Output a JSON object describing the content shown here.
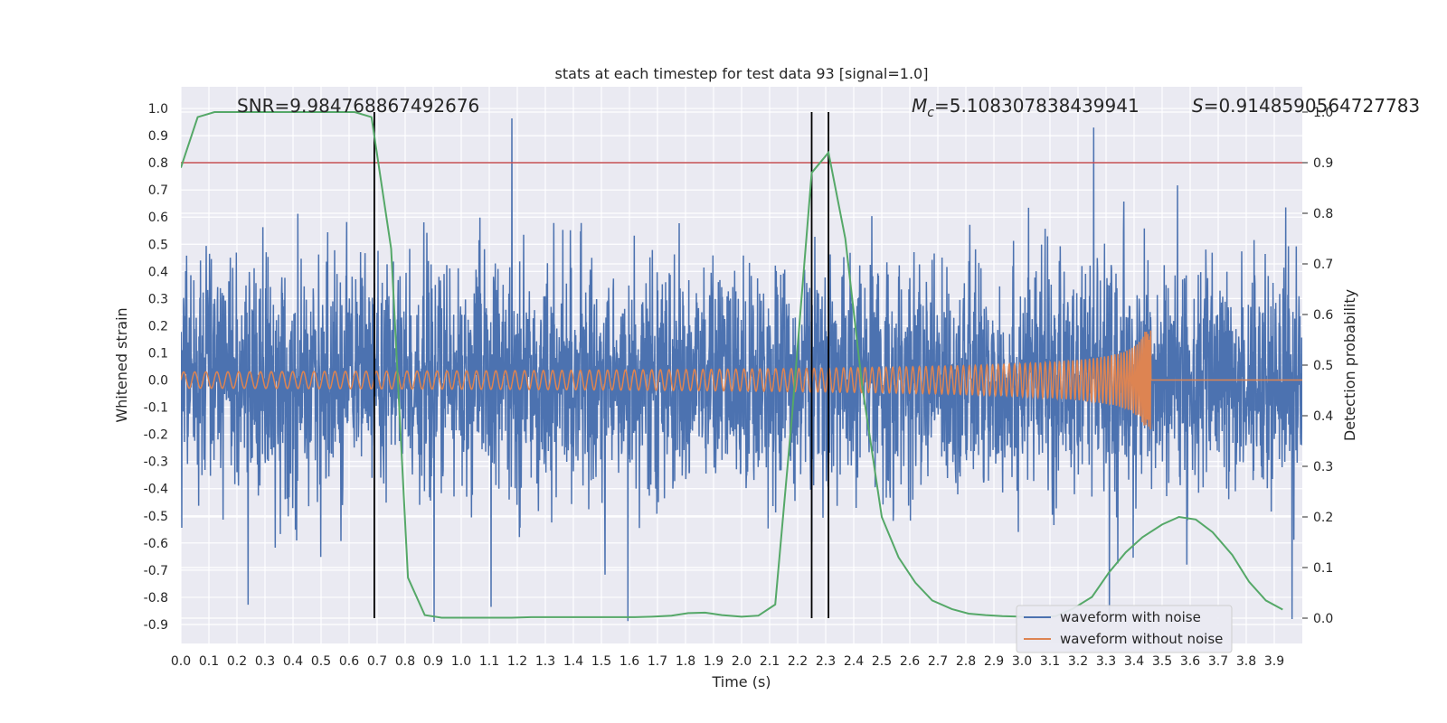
{
  "chart_data": {
    "type": "line",
    "title": "stats at each timestep for test data 93 [signal=1.0]",
    "xlabel": "Time (s)",
    "ylabel": "Whitened strain",
    "y2label": "Detection probability",
    "xlim": [
      0.0,
      4.0
    ],
    "ylim": [
      -0.97,
      1.08
    ],
    "y2lim": [
      -0.05,
      1.05
    ],
    "grid": true,
    "legend_position": "lower-right",
    "xticks": [
      "0.0",
      "0.1",
      "0.2",
      "0.3",
      "0.4",
      "0.5",
      "0.6",
      "0.7",
      "0.8",
      "0.9",
      "1.0",
      "1.1",
      "1.2",
      "1.3",
      "1.4",
      "1.5",
      "1.6",
      "1.7",
      "1.8",
      "1.9",
      "2.0",
      "2.1",
      "2.2",
      "2.3",
      "2.4",
      "2.5",
      "2.6",
      "2.7",
      "2.8",
      "2.9",
      "3.0",
      "3.1",
      "3.2",
      "3.3",
      "3.4",
      "3.5",
      "3.6",
      "3.7",
      "3.8",
      "3.9"
    ],
    "yticks": [
      "1.0",
      "0.9",
      "0.8",
      "0.7",
      "0.6",
      "0.5",
      "0.4",
      "0.3",
      "0.2",
      "0.1",
      "0.0",
      "-0.1",
      "-0.2",
      "-0.3",
      "-0.4",
      "-0.5",
      "-0.6",
      "-0.7",
      "-0.8",
      "-0.9"
    ],
    "y2ticks": [
      "1.0",
      "0.9",
      "0.8",
      "0.7",
      "0.6",
      "0.5",
      "0.4",
      "0.3",
      "0.2",
      "0.1",
      "0.0"
    ],
    "annotations": {
      "snr": "SNR=9.984768867492676",
      "mc": "=5.108307838439941",
      "mc_symbol": "M",
      "mc_sub": "c",
      "s": "=0.9148590564727783",
      "s_symbol": "S"
    },
    "series": [
      {
        "name": "waveform with noise",
        "color": "#4c72b0",
        "description_values": "noisy whitened strain, amplitude mostly within [-0.9, 1.0]"
      },
      {
        "name": "waveform without noise",
        "color": "#dd8452",
        "chirp_end_time": 3.46,
        "chirp_start_amplitude": 0.03,
        "chirp_peak_amplitude": 0.22
      },
      {
        "name": "detection probability",
        "axis": "y2",
        "color": "#55a868",
        "x": [
          0.0,
          0.06,
          0.12,
          0.19,
          0.25,
          0.31,
          0.37,
          0.43,
          0.5,
          0.56,
          0.62,
          0.68,
          0.75,
          0.81,
          0.87,
          0.93,
          1.0,
          1.06,
          1.12,
          1.18,
          1.25,
          1.31,
          1.37,
          1.43,
          1.5,
          1.56,
          1.62,
          1.68,
          1.75,
          1.81,
          1.87,
          1.93,
          2.0,
          2.06,
          2.12,
          2.18,
          2.25,
          2.31,
          2.37,
          2.43,
          2.5,
          2.56,
          2.62,
          2.68,
          2.75,
          2.81,
          2.87,
          2.93,
          3.0,
          3.06,
          3.12,
          3.18,
          3.25,
          3.31,
          3.37,
          3.43,
          3.5,
          3.56,
          3.62,
          3.68,
          3.75,
          3.81,
          3.87,
          3.93
        ],
        "values": [
          0.89,
          0.99,
          1.0,
          1.0,
          1.0,
          1.0,
          1.0,
          1.0,
          1.0,
          1.0,
          1.0,
          0.99,
          0.73,
          0.08,
          0.006,
          0.001,
          0.001,
          0.001,
          0.001,
          0.001,
          0.002,
          0.002,
          0.002,
          0.002,
          0.002,
          0.002,
          0.002,
          0.003,
          0.005,
          0.01,
          0.011,
          0.006,
          0.003,
          0.005,
          0.027,
          0.4,
          0.88,
          0.92,
          0.75,
          0.46,
          0.2,
          0.12,
          0.07,
          0.035,
          0.018,
          0.009,
          0.006,
          0.004,
          0.003,
          0.002,
          0.004,
          0.018,
          0.042,
          0.09,
          0.13,
          0.16,
          0.185,
          0.2,
          0.195,
          0.17,
          0.125,
          0.072,
          0.035,
          0.017
        ]
      }
    ],
    "threshold_line": {
      "value": 0.9,
      "axis": "y2",
      "color": "#c44e52"
    },
    "vertical_lines": [
      0.69,
      2.25,
      2.31
    ],
    "vertical_line_color": "#000000"
  }
}
